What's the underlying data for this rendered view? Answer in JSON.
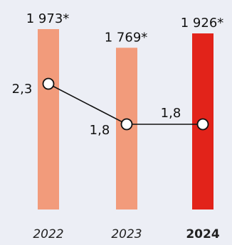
{
  "chart_data": {
    "type": "bar",
    "categories": [
      "2022",
      "2023",
      "2024"
    ],
    "highlight_category": "2024",
    "bar_series": {
      "values": [
        1973,
        1769,
        1926
      ],
      "labels": [
        "1 973*",
        "1 769*",
        "1 926*"
      ],
      "colors": [
        "#f29b7b",
        "#f29b7b",
        "#e2231a"
      ]
    },
    "line_series": {
      "values": [
        2.3,
        1.8,
        1.8
      ],
      "labels": [
        "2,3",
        "1,8",
        "1,8"
      ],
      "color": "#111111",
      "marker": "circle-outline"
    },
    "category_label_color_highlight": "#e2231a"
  }
}
